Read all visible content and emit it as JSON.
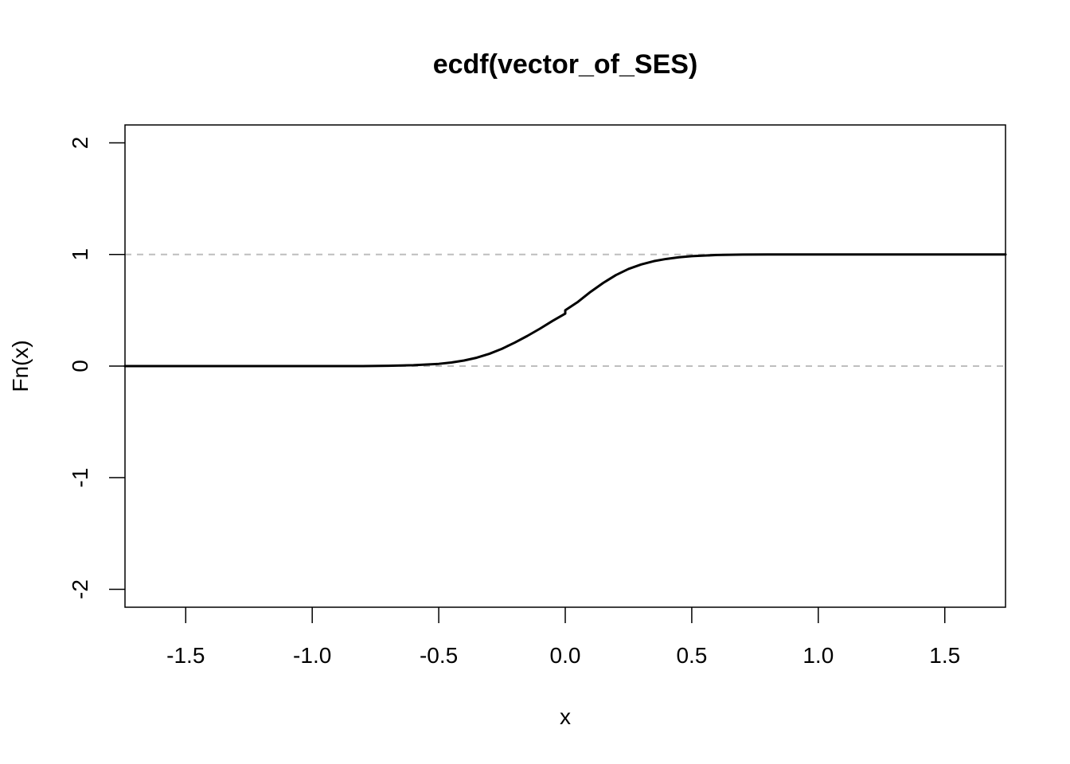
{
  "chart_data": {
    "type": "line",
    "title": "ecdf(vector_of_SES)",
    "xlabel": "x",
    "ylabel": "Fn(x)",
    "xlim": [
      -1.74,
      1.74
    ],
    "ylim": [
      -2.16,
      2.16
    ],
    "x_ticks": [
      "-1.5",
      "-1.0",
      "-0.5",
      "0.0",
      "0.5",
      "1.0",
      "1.5"
    ],
    "y_ticks": [
      "-2",
      "-1",
      "0",
      "1",
      "2"
    ],
    "reference_lines": [
      {
        "y": 0,
        "style": "dashed",
        "color": "#bebebe"
      },
      {
        "y": 1,
        "style": "dashed",
        "color": "#bebebe"
      }
    ],
    "series": [
      {
        "color": "#000000",
        "x": [
          -1.74,
          -0.8,
          -0.7,
          -0.6,
          -0.5,
          -0.45,
          -0.4,
          -0.35,
          -0.3,
          -0.25,
          -0.2,
          -0.15,
          -0.1,
          -0.05,
          0.0,
          0.0,
          0.05,
          0.1,
          0.15,
          0.2,
          0.25,
          0.3,
          0.35,
          0.4,
          0.45,
          0.5,
          0.6,
          0.7,
          0.8,
          1.0,
          1.74
        ],
        "y": [
          0.0,
          0.0,
          0.003,
          0.008,
          0.02,
          0.032,
          0.05,
          0.075,
          0.11,
          0.155,
          0.21,
          0.27,
          0.335,
          0.405,
          0.47,
          0.5,
          0.575,
          0.665,
          0.745,
          0.815,
          0.87,
          0.91,
          0.94,
          0.96,
          0.975,
          0.985,
          0.995,
          0.999,
          1.0,
          1.0,
          1.0
        ]
      }
    ]
  }
}
